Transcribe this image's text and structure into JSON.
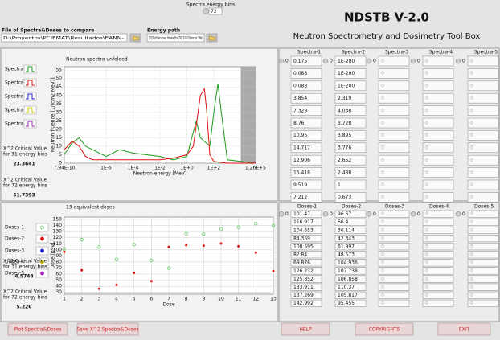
{
  "header": {
    "file_label": "File of Spectra&Doses to compare",
    "file_path": "D:\\Proyectos\\PCIEMAT\\Resultados\\EANN-",
    "bins_label": "Spectra energy bins",
    "bins_value": 72,
    "energy_label": "Energy path",
    "energy_path": "Z:\\DLvb\\Versiones finales Est-CMT-2010\\Detector 3He\\",
    "title": "NDSTB V-2.0",
    "subtitle": "Neutron Spectrometry and Dosimetry Tool Box"
  },
  "chart_data": [
    {
      "type": "line",
      "title": "Neutron spectra unfolded",
      "x_label": "Neutron energy [MeV]",
      "y_label": "Neutron fluence [1/(cm2 MeV)]",
      "log_x": true,
      "grid": true,
      "xlim": [
        7.94e-10,
        126000
      ],
      "xticks": [
        {
          "value": 7.94e-10,
          "label": "7.94E-10"
        },
        {
          "value": 1e-06,
          "label": "1E-6"
        },
        {
          "value": 0.0001,
          "label": "1E-4"
        },
        {
          "value": 0.01,
          "label": "1E-2"
        },
        {
          "value": 1,
          "label": "1E+0"
        },
        {
          "value": 100,
          "label": "1E+2"
        },
        {
          "value": 126000,
          "label": "1.26E+5"
        }
      ],
      "ylim": [
        0,
        57
      ],
      "yticks": [
        0,
        5,
        10,
        15,
        20,
        25,
        30,
        35,
        40,
        45,
        50,
        55
      ],
      "series": [
        {
          "name": "Spectra-1",
          "color": "#1a9a1a",
          "x": [
            7.94e-10,
            3e-09,
            1e-08,
            3e-08,
            1e-07,
            1e-06,
            1e-05,
            0.0001,
            0.001,
            0.01,
            0.1,
            1,
            5,
            10,
            50,
            100,
            200,
            300,
            1000,
            126000
          ],
          "values": [
            5,
            12,
            15,
            10,
            8,
            4,
            8,
            6,
            5,
            4,
            2,
            4,
            25,
            15,
            10,
            30,
            47,
            35,
            2,
            0
          ]
        },
        {
          "name": "Spectra-2",
          "color": "#e01010",
          "x": [
            7.94e-10,
            3e-09,
            1e-08,
            3e-08,
            1e-07,
            1e-06,
            0.0001,
            0.01,
            0.1,
            1,
            3,
            10,
            20,
            30,
            50,
            100,
            1000,
            126000
          ],
          "values": [
            8,
            13,
            10,
            4,
            2,
            2,
            2,
            2,
            3,
            5,
            10,
            40,
            44,
            30,
            5,
            1,
            0,
            0
          ]
        },
        {
          "name": "Spectra-3",
          "color": "#2020d0"
        },
        {
          "name": "Spectra-4",
          "color": "#d0c800"
        },
        {
          "name": "Spectra-5",
          "color": "#a020c0"
        }
      ]
    },
    {
      "type": "scatter",
      "title": "13 equivalent doses",
      "x_label": "Dose",
      "y_label": "Dose [pSv]",
      "grid": true,
      "xlim": [
        1,
        13
      ],
      "xticks": [
        1,
        2,
        3,
        4,
        5,
        6,
        7,
        8,
        9,
        10,
        11,
        12,
        13
      ],
      "ylim": [
        27,
        154
      ],
      "yticks": [
        30,
        40,
        50,
        60,
        70,
        80,
        90,
        100,
        110,
        120,
        130,
        140,
        150
      ],
      "series": [
        {
          "name": "Doses-1",
          "color": "#66cc66",
          "values": [
            101.47,
            116.917,
            104.653,
            84.359,
            108.595,
            82.84,
            69.876,
            126.232,
            125.852,
            133.911,
            137.269,
            142.992,
            140
          ]
        },
        {
          "name": "Doses-2",
          "color": "#e01010",
          "values": [
            96.67,
            66.4,
            36.114,
            42.343,
            61.997,
            48.573,
            104.936,
            107.738,
            106.858,
            110.37,
            105.817,
            95.455,
            65
          ]
        },
        {
          "name": "Doses-3",
          "color": "#2020d0"
        },
        {
          "name": "Doses-4",
          "color": "#d0c800"
        },
        {
          "name": "Doses-5",
          "color": "#a020c0"
        }
      ]
    }
  ],
  "side_stats": [
    {
      "label_lines": [
        "X^2 Critical Value",
        "for 31 energy bins"
      ],
      "value": 23.3641
    },
    {
      "label_lines": [
        "X^2 Critical Value",
        "for 72 energy bins"
      ],
      "value": 51.7393
    },
    {
      "label_lines": [
        "X^2 Critical Value",
        "for 31 energy bins"
      ],
      "value": 4.5748
    },
    {
      "label_lines": [
        "X^2 Critical Value",
        "for 72 energy bins"
      ],
      "value": 5.226
    }
  ],
  "spectra_table": {
    "columns": [
      {
        "name": "Spectra-1",
        "index": 0,
        "cells": [
          0.175,
          0.088,
          0.088,
          3.854,
          7.329,
          8.76,
          10.95,
          14.717,
          12.906,
          15.418,
          9.519,
          7.212
        ]
      },
      {
        "name": "Spectra-2",
        "index": 0,
        "cells": [
          "1E-200",
          "1E-200",
          "1E-200",
          2.319,
          4.038,
          3.728,
          3.895,
          3.776,
          2.652,
          2.488,
          1,
          0.673
        ]
      },
      {
        "name": "Spectra-3",
        "index": 0,
        "cells": [
          0,
          0,
          0,
          0,
          0,
          0,
          0,
          0,
          0,
          0,
          0,
          0
        ]
      },
      {
        "name": "Spectra-4",
        "index": 0,
        "cells": [
          0,
          0,
          0,
          0,
          0,
          0,
          0,
          0,
          0,
          0,
          0,
          0
        ]
      },
      {
        "name": "Spectra-5",
        "index": 0,
        "cells": [
          0,
          0,
          0,
          0,
          0,
          0,
          0,
          0,
          0,
          0,
          0,
          0
        ]
      }
    ]
  },
  "dose_table": {
    "columns": [
      {
        "name": "Doses-1",
        "index": 0
      },
      {
        "name": "Doses-2",
        "index": 0
      },
      {
        "name": "Doses-3",
        "index": 0,
        "cells": [
          0,
          0,
          0,
          0,
          0,
          0,
          0,
          0,
          0,
          0,
          0,
          0
        ]
      },
      {
        "name": "Doses-4",
        "index": 0,
        "cells": [
          0,
          0,
          0,
          0,
          0,
          0,
          0,
          0,
          0,
          0,
          0,
          0
        ]
      },
      {
        "name": "Doses-5",
        "index": 0,
        "cells": [
          0,
          0,
          0,
          0,
          0,
          0,
          0,
          0,
          0,
          0,
          0,
          0
        ]
      }
    ]
  },
  "buttons": [
    "Plot Spectra&Doses",
    "Save X^2 Spectra&Doses",
    "HELP",
    "COPYRIGHTS",
    "EXIT"
  ]
}
